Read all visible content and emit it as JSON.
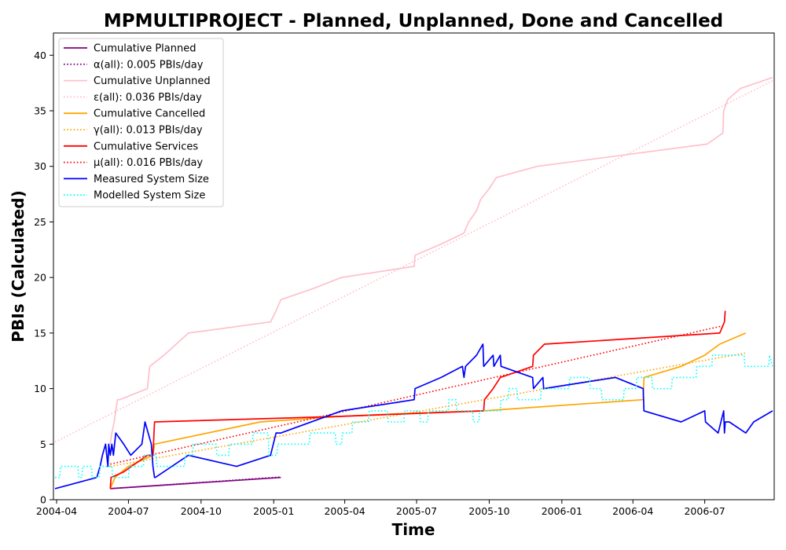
{
  "chart_data": {
    "type": "line",
    "title": "MPMULTIPROJECT - Planned, Unplanned, Done  and Cancelled",
    "xlabel": "Time",
    "ylabel": "PBIs (Calculated)",
    "xlim": [
      "2004-03-28",
      "2006-09-27"
    ],
    "ylim": [
      0,
      42
    ],
    "x_ticks": [
      "2004-04",
      "2004-07",
      "2004-10",
      "2005-01",
      "2005-04",
      "2005-07",
      "2005-10",
      "2006-01",
      "2006-04",
      "2006-07"
    ],
    "y_ticks": [
      0,
      5,
      10,
      15,
      20,
      25,
      30,
      35,
      40
    ],
    "grid": false,
    "legend_position": "upper-left",
    "series": [
      {
        "name": "Cumulative Planned",
        "color": "#800080",
        "style": "solid",
        "x": [
          "2004-06-08",
          "2005-01-10"
        ],
        "y": [
          1,
          2
        ]
      },
      {
        "name": "α(all): 0.005 PBIs/day",
        "color": "#800080",
        "style": "dotted",
        "x": [
          "2004-06-08",
          "2005-01-10"
        ],
        "y": [
          1.0,
          2.05
        ]
      },
      {
        "name": "Cumulative Unplanned",
        "color": "#ffc0cb",
        "style": "solid",
        "x": [
          "2004-06-08",
          "2004-06-10",
          "2004-06-13",
          "2004-06-15",
          "2004-06-17",
          "2004-06-20",
          "2004-07-25",
          "2004-07-28",
          "2004-08-15",
          "2004-09-15",
          "2004-12-28",
          "2005-01-04",
          "2005-01-10",
          "2005-02-20",
          "2005-03-28",
          "2005-06-28",
          "2005-06-29",
          "2005-08-01",
          "2005-08-30",
          "2005-09-05",
          "2005-09-15",
          "2005-09-20",
          "2005-10-01",
          "2005-10-10",
          "2005-12-01",
          "2006-07-04",
          "2006-07-24",
          "2006-07-25",
          "2006-07-30",
          "2006-08-15",
          "2006-09-25"
        ],
        "y": [
          5,
          6,
          7,
          8,
          9,
          9,
          10,
          12,
          13,
          15,
          16,
          17,
          18,
          19,
          20,
          21,
          22,
          23,
          24,
          25,
          26,
          27,
          28,
          29,
          30,
          32,
          33,
          35,
          36,
          37,
          38
        ]
      },
      {
        "name": "ε(all): 0.036 PBIs/day",
        "color": "#ffc0cb",
        "style": "dotted",
        "x": [
          "2004-03-30",
          "2006-09-25"
        ],
        "y": [
          5.2,
          37.7
        ]
      },
      {
        "name": "Cumulative Cancelled",
        "color": "#ffa500",
        "style": "solid",
        "x": [
          "2004-06-08",
          "2004-06-14",
          "2004-07-01",
          "2004-08-01",
          "2004-08-03",
          "2004-12-15",
          "2005-03-28",
          "2005-06-28",
          "2005-09-24",
          "2006-04-14",
          "2006-04-15",
          "2006-06-01",
          "2006-07-01",
          "2006-07-20",
          "2006-08-22"
        ],
        "y": [
          1,
          2,
          3,
          4,
          5,
          7,
          7.5,
          7.8,
          8,
          9,
          11,
          12,
          13,
          14,
          15
        ]
      },
      {
        "name": "γ(all): 0.013 PBIs/day",
        "color": "#ffa500",
        "style": "dotted",
        "x": [
          "2004-06-08",
          "2006-08-22"
        ],
        "y": [
          3.0,
          13.2
        ]
      },
      {
        "name": "Cumulative Services",
        "color": "#ff0000",
        "style": "solid",
        "x": [
          "2004-06-08",
          "2004-06-09",
          "2004-06-25",
          "2004-07-25",
          "2004-08-01",
          "2004-08-03",
          "2005-03-28",
          "2005-09-24",
          "2005-09-25",
          "2005-10-06",
          "2005-10-15",
          "2005-11-25",
          "2005-11-26",
          "2005-12-10",
          "2006-07-20",
          "2006-07-26",
          "2006-07-27"
        ],
        "y": [
          1,
          2,
          2.5,
          4,
          4,
          7,
          7.5,
          8,
          9,
          10,
          11,
          12,
          13,
          14,
          15,
          16,
          17
        ]
      },
      {
        "name": "μ(all): 0.016 PBIs/day",
        "color": "#ff0000",
        "style": "dotted",
        "x": [
          "2004-06-08",
          "2006-07-27"
        ],
        "y": [
          3.2,
          15.7
        ]
      },
      {
        "name": "Measured System Size",
        "color": "#0000ff",
        "style": "solid",
        "x": [
          "2004-03-30",
          "2004-05-22",
          "2004-05-26",
          "2004-05-29",
          "2004-06-02",
          "2004-06-05",
          "2004-06-06",
          "2004-06-08",
          "2004-06-10",
          "2004-06-12",
          "2004-06-15",
          "2004-06-25",
          "2004-07-04",
          "2004-07-18",
          "2004-07-22",
          "2004-07-30",
          "2004-08-01",
          "2004-08-03",
          "2004-08-04",
          "2004-09-15",
          "2004-11-15",
          "2004-12-28",
          "2005-01-04",
          "2005-01-10",
          "2005-03-28",
          "2005-06-28",
          "2005-06-29",
          "2005-08-01",
          "2005-08-28",
          "2005-08-30",
          "2005-09-01",
          "2005-09-15",
          "2005-09-23",
          "2005-09-24",
          "2005-10-06",
          "2005-10-07",
          "2005-10-15",
          "2005-10-16",
          "2005-11-25",
          "2005-11-26",
          "2005-12-08",
          "2005-12-09",
          "2006-03-10",
          "2006-04-14",
          "2006-04-15",
          "2006-06-01",
          "2006-07-01",
          "2006-07-02",
          "2006-07-18",
          "2006-07-25",
          "2006-07-26",
          "2006-07-27",
          "2006-08-01",
          "2006-08-22",
          "2006-09-01",
          "2006-09-25"
        ],
        "y": [
          1,
          2,
          3,
          4,
          5,
          3,
          5,
          4,
          5,
          4,
          6,
          5,
          4,
          5,
          7,
          5,
          3,
          2,
          2,
          4,
          3,
          4,
          6,
          6,
          8,
          9,
          10,
          11,
          12,
          11,
          12,
          13,
          14,
          12,
          13,
          12,
          13,
          12,
          11,
          10,
          11,
          10,
          11,
          10,
          8,
          7,
          8,
          7,
          6,
          8,
          6,
          7,
          7,
          6,
          7,
          8
        ]
      },
      {
        "name": "Modelled System Size",
        "color": "#00ffff",
        "style": "dotted",
        "x": [
          "2004-03-30",
          "2004-04-05",
          "2004-04-06",
          "2004-04-28",
          "2004-04-29",
          "2004-05-03",
          "2004-05-04",
          "2004-05-15",
          "2004-05-16",
          "2004-05-25",
          "2004-05-26",
          "2004-06-10",
          "2004-06-11",
          "2004-07-01",
          "2004-07-02",
          "2004-07-20",
          "2004-07-21",
          "2004-08-05",
          "2004-08-06",
          "2004-09-10",
          "2004-09-11",
          "2004-09-20",
          "2004-09-21",
          "2004-10-20",
          "2004-10-21",
          "2004-11-05",
          "2004-11-06",
          "2004-12-05",
          "2004-12-06",
          "2004-12-25",
          "2004-12-26",
          "2005-01-05",
          "2005-01-06",
          "2005-02-15",
          "2005-02-16",
          "2005-03-20",
          "2005-03-21",
          "2005-03-28",
          "2005-03-29",
          "2005-04-10",
          "2005-04-11",
          "2005-05-01",
          "2005-05-02",
          "2005-05-25",
          "2005-05-26",
          "2005-06-15",
          "2005-06-16",
          "2005-07-05",
          "2005-07-06",
          "2005-07-15",
          "2005-07-16",
          "2005-08-10",
          "2005-08-11",
          "2005-08-20",
          "2005-08-21",
          "2005-09-10",
          "2005-09-11",
          "2005-09-18",
          "2005-09-19",
          "2005-10-15",
          "2005-10-16",
          "2005-10-25",
          "2005-10-26",
          "2005-11-05",
          "2005-11-06",
          "2005-12-05",
          "2005-12-06",
          "2006-01-10",
          "2006-01-11",
          "2006-02-05",
          "2006-02-06",
          "2006-02-20",
          "2006-02-21",
          "2006-03-20",
          "2006-03-21",
          "2006-04-05",
          "2006-04-06",
          "2006-04-25",
          "2006-04-26",
          "2006-05-20",
          "2006-05-21",
          "2006-06-20",
          "2006-06-21",
          "2006-07-10",
          "2006-07-11",
          "2006-08-20",
          "2006-08-21",
          "2006-09-20",
          "2006-09-21",
          "2006-09-25"
        ],
        "y": [
          2,
          2,
          3,
          3,
          2,
          2,
          3,
          3,
          2,
          2,
          3,
          3,
          2,
          2,
          3,
          3,
          4,
          4,
          3,
          3,
          4,
          4,
          5,
          5,
          4,
          4,
          5,
          5,
          6,
          6,
          4,
          4,
          5,
          5,
          6,
          6,
          5,
          5,
          6,
          6,
          7,
          7,
          8,
          8,
          7,
          7,
          8,
          8,
          7,
          7,
          8,
          8,
          9,
          9,
          8,
          8,
          7,
          7,
          8,
          8,
          9,
          9,
          10,
          10,
          9,
          9,
          10,
          10,
          11,
          11,
          10,
          10,
          9,
          9,
          10,
          10,
          11,
          11,
          10,
          10,
          11,
          11,
          12,
          12,
          13,
          13,
          12,
          12,
          13,
          12
        ]
      }
    ]
  }
}
